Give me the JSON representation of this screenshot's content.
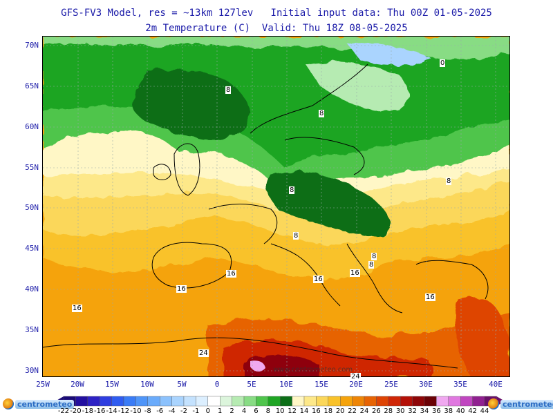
{
  "header": {
    "model_line": "GFS-FV3 Model, res = ~13km 127lev   Initial input data: Thu 00Z 01-05-2025",
    "variable_line": "2m Temperature (C)  Valid: Thu 18Z 08-05-2025"
  },
  "lat_labels": [
    "70N",
    "65N",
    "60N",
    "55N",
    "50N",
    "45N",
    "40N",
    "35N",
    "30N"
  ],
  "lon_labels": [
    "25W",
    "20W",
    "15W",
    "10W",
    "5W",
    "0",
    "5E",
    "10E",
    "15E",
    "20E",
    "25E",
    "30E",
    "35E",
    "40E"
  ],
  "contour_labels": [
    "8",
    "8",
    "8",
    "8",
    "8",
    "8",
    "8",
    "16",
    "16",
    "16",
    "16",
    "16",
    "24",
    "24",
    "16",
    "0"
  ],
  "legend": {
    "values": [
      "-22",
      "-20",
      "-18",
      "-16",
      "-14",
      "-12",
      "-10",
      "-8",
      "-6",
      "-4",
      "-2",
      "-1",
      "0",
      "1",
      "2",
      "4",
      "6",
      "8",
      "10",
      "12",
      "14",
      "16",
      "18",
      "20",
      "22",
      "24",
      "26",
      "28",
      "30",
      "32",
      "34",
      "36",
      "38",
      "40",
      "42",
      "44"
    ],
    "colors": [
      "#1a0a78",
      "#230fa0",
      "#2e22c4",
      "#2f3ee0",
      "#2f5cf0",
      "#3a7cf6",
      "#4f95f8",
      "#6aabfb",
      "#8cc2fd",
      "#aad4fe",
      "#c4e2fe",
      "#dcefff",
      "#ffffff",
      "#dcf5dc",
      "#b6ebb2",
      "#88dc84",
      "#4fc54c",
      "#1fa524",
      "#0c6e17",
      "#fff7c6",
      "#fde889",
      "#fbd75a",
      "#f9c22a",
      "#f5a30c",
      "#ee8506",
      "#e76404",
      "#de4404",
      "#cf2606",
      "#b41008",
      "#8e0608",
      "#6b0206",
      "#f0a8f0",
      "#e078e0",
      "#c046c0",
      "#902090",
      "#6a0f6a"
    ]
  },
  "logos": {
    "left": "centrometeo",
    "right": "centrometeo"
  },
  "watermark": "www.centrometeo.com"
}
